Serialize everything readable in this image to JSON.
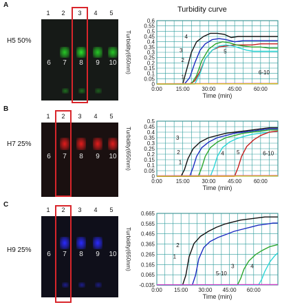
{
  "panels": [
    {
      "letter": "A",
      "label": "H5 50%",
      "lanes": [
        "1",
        "2",
        "3",
        "4",
        "5"
      ],
      "well_labels": [
        "6",
        "7",
        "8",
        "9",
        "10"
      ],
      "highlighted_lane": "3",
      "band_color": "#26c826",
      "positive_lanes": [
        "2",
        "3",
        "4",
        "5"
      ]
    },
    {
      "letter": "B",
      "label": "H7 25%",
      "lanes": [
        "1",
        "2",
        "3",
        "4",
        "5"
      ],
      "well_labels": [
        "6",
        "7",
        "8",
        "9",
        "10"
      ],
      "highlighted_lane": "2",
      "band_color": "#e21c1c",
      "positive_lanes": [
        "2",
        "3",
        "4",
        "5"
      ]
    },
    {
      "letter": "C",
      "label": "H9 25%",
      "lanes": [
        "1",
        "2",
        "3",
        "4",
        "5"
      ],
      "well_labels": [
        "6",
        "7",
        "8",
        "9",
        "10"
      ],
      "highlighted_lane": "2",
      "band_color": "#2a2aff",
      "positive_lanes": [
        "2",
        "3",
        "4"
      ]
    }
  ],
  "chart_title": "Turbidity curve",
  "chart_data": [
    {
      "type": "line",
      "title": "Turbidity curve",
      "xlabel": "Time (min)",
      "ylabel": "Turbidity(650nm)",
      "xlim": [
        0,
        70
      ],
      "ylim": [
        0,
        0.6
      ],
      "xticks": [
        "0:00",
        "15:00",
        "30:00",
        "45:00",
        "60:00"
      ],
      "yticks": [
        "0",
        "0.05",
        "0.1",
        "0.15",
        "0.2",
        "0.25",
        "0.3",
        "0.35",
        "0.4",
        "0.45",
        "0.5",
        "0.55",
        "0.6"
      ],
      "grid": true,
      "annotations": [
        {
          "text": "1",
          "x": 15.0,
          "y": 0.05
        },
        {
          "text": "2",
          "x": 15.0,
          "y": 0.21
        },
        {
          "text": "3",
          "x": 14.0,
          "y": 0.3
        },
        {
          "text": "4",
          "x": 17.0,
          "y": 0.43
        },
        {
          "text": "5",
          "x": 39.5,
          "y": 0.29
        },
        {
          "text": "6-10",
          "x": 62.0,
          "y": 0.09
        }
      ],
      "series": [
        {
          "name": "1",
          "color": "#c51b1b",
          "x": [
            0,
            19,
            22,
            25,
            28,
            32,
            36,
            40,
            45,
            50,
            55,
            60,
            65,
            70
          ],
          "y": [
            0,
            0,
            0.03,
            0.12,
            0.24,
            0.32,
            0.35,
            0.36,
            0.37,
            0.37,
            0.37,
            0.38,
            0.38,
            0.38
          ]
        },
        {
          "name": "2",
          "color": "#1b2bc0",
          "x": [
            0,
            16,
            19,
            22,
            25,
            28,
            32,
            36,
            40,
            45,
            50,
            55,
            60,
            65,
            70
          ],
          "y": [
            0,
            0,
            0.06,
            0.2,
            0.32,
            0.38,
            0.42,
            0.43,
            0.42,
            0.4,
            0.41,
            0.41,
            0.41,
            0.41,
            0.41
          ]
        },
        {
          "name": "3",
          "color": "#101010",
          "x": [
            0,
            15,
            17,
            20,
            23,
            27,
            31,
            35,
            39,
            43,
            47,
            52,
            57,
            62,
            67,
            70
          ],
          "y": [
            0,
            0,
            0.12,
            0.3,
            0.4,
            0.45,
            0.48,
            0.48,
            0.47,
            0.44,
            0.45,
            0.45,
            0.45,
            0.45,
            0.45,
            0.45
          ]
        },
        {
          "name": "4",
          "color": "#2ba52b",
          "x": [
            0,
            20,
            23,
            26,
            30,
            34,
            38,
            42,
            46,
            50,
            55,
            60,
            65,
            70
          ],
          "y": [
            0,
            0,
            0.08,
            0.22,
            0.33,
            0.38,
            0.4,
            0.39,
            0.37,
            0.36,
            0.35,
            0.35,
            0.34,
            0.34
          ]
        },
        {
          "name": "5",
          "color": "#2ad6d6",
          "x": [
            0,
            22,
            25,
            28,
            32,
            36,
            40,
            44,
            48,
            52,
            56,
            60,
            65,
            70
          ],
          "y": [
            0,
            0,
            0.1,
            0.24,
            0.32,
            0.36,
            0.37,
            0.36,
            0.34,
            0.32,
            0.31,
            0.31,
            0.31,
            0.31
          ]
        },
        {
          "name": "6-10",
          "color": "#d040c8",
          "x": [
            0,
            70
          ],
          "y": [
            0.002,
            0.005
          ]
        },
        {
          "name": "6-10b",
          "color": "#d8c21c",
          "x": [
            0,
            70
          ],
          "y": [
            0.0,
            0.003
          ]
        }
      ]
    },
    {
      "type": "line",
      "xlabel": "Time (min)",
      "ylabel": "Turbidity(650nm)",
      "xlim": [
        0,
        70
      ],
      "ylim": [
        0,
        0.5
      ],
      "xticks": [
        "0:00",
        "15:00",
        "30:00",
        "45:00",
        "60:00"
      ],
      "yticks": [
        "0",
        "0.05",
        "0.1",
        "0.15",
        "0.2",
        "0.25",
        "0.3",
        "0.35",
        "0.4",
        "0.45",
        "0.5"
      ],
      "grid": true,
      "annotations": [
        {
          "text": "1",
          "x": 13.5,
          "y": 0.11
        },
        {
          "text": "2",
          "x": 12.5,
          "y": 0.2
        },
        {
          "text": "3",
          "x": 12.0,
          "y": 0.33
        },
        {
          "text": "4",
          "x": 38.0,
          "y": 0.19
        },
        {
          "text": "5",
          "x": 47.0,
          "y": 0.2
        },
        {
          "text": "6-10",
          "x": 64.5,
          "y": 0.19
        }
      ],
      "series": [
        {
          "name": "1",
          "color": "#101010",
          "x": [
            0,
            14,
            16,
            18,
            21,
            25,
            30,
            35,
            40,
            45,
            50,
            55,
            60,
            65,
            70
          ],
          "y": [
            0,
            0,
            0.06,
            0.16,
            0.25,
            0.31,
            0.35,
            0.37,
            0.39,
            0.4,
            0.41,
            0.42,
            0.43,
            0.44,
            0.44
          ]
        },
        {
          "name": "2",
          "color": "#1b2bc0",
          "x": [
            0,
            19,
            21,
            23,
            26,
            30,
            35,
            40,
            45,
            50,
            55,
            60,
            65,
            70
          ],
          "y": [
            0,
            0,
            0.08,
            0.18,
            0.26,
            0.31,
            0.35,
            0.37,
            0.39,
            0.4,
            0.41,
            0.42,
            0.43,
            0.43
          ]
        },
        {
          "name": "3",
          "color": "#2ba52b",
          "x": [
            0,
            24,
            26,
            28,
            31,
            35,
            40,
            45,
            50,
            55,
            60,
            65,
            70
          ],
          "y": [
            0,
            0,
            0.08,
            0.18,
            0.26,
            0.31,
            0.35,
            0.37,
            0.39,
            0.4,
            0.41,
            0.42,
            0.42
          ]
        },
        {
          "name": "4",
          "color": "#2ad6d6",
          "x": [
            0,
            31,
            33,
            35,
            38,
            42,
            46,
            50,
            55,
            60,
            65,
            70
          ],
          "y": [
            0,
            0,
            0.08,
            0.18,
            0.26,
            0.31,
            0.34,
            0.36,
            0.38,
            0.39,
            0.4,
            0.41
          ]
        },
        {
          "name": "5",
          "color": "#c51b1b",
          "x": [
            0,
            45,
            47,
            49,
            52,
            56,
            60,
            65,
            70
          ],
          "y": [
            0,
            0,
            0.08,
            0.18,
            0.27,
            0.33,
            0.37,
            0.4,
            0.41
          ]
        },
        {
          "name": "6-10",
          "color": "#d040c8",
          "x": [
            0,
            70
          ],
          "y": [
            0.004,
            0.006
          ]
        },
        {
          "name": "6-10b",
          "color": "#d8c21c",
          "x": [
            0,
            70
          ],
          "y": [
            0.0,
            0.003
          ]
        }
      ]
    },
    {
      "type": "line",
      "xlabel": "Time (min)",
      "ylabel": "Turbidity(650nm)",
      "xlim": [
        0,
        75
      ],
      "ylim": [
        -0.035,
        0.665
      ],
      "xticks": [
        "0:00",
        "15:00",
        "30:00",
        "45:00",
        "60:00"
      ],
      "yticks": [
        "-0.035",
        "0.065",
        "0.165",
        "0.265",
        "0.365",
        "0.465",
        "0.565",
        "0.665"
      ],
      "grid": true,
      "annotations": [
        {
          "text": "2",
          "x": 13.0,
          "y": 0.335
        },
        {
          "text": "1",
          "x": 11.0,
          "y": 0.225
        },
        {
          "text": "3",
          "x": 47.0,
          "y": 0.13
        },
        {
          "text": "4",
          "x": 59.0,
          "y": 0.13
        },
        {
          "text": "5-10",
          "x": 40.0,
          "y": 0.06
        }
      ],
      "series": [
        {
          "name": "2",
          "color": "#101010",
          "x": [
            0,
            16,
            18,
            20,
            23,
            27,
            32,
            37,
            42,
            47,
            52,
            57,
            62,
            67,
            72,
            75
          ],
          "y": [
            -0.035,
            -0.035,
            0.06,
            0.24,
            0.37,
            0.44,
            0.49,
            0.53,
            0.56,
            0.58,
            0.6,
            0.61,
            0.62,
            0.63,
            0.63,
            0.63
          ]
        },
        {
          "name": "1",
          "color": "#1b2bc0",
          "x": [
            0,
            22,
            24,
            26,
            29,
            33,
            38,
            43,
            48,
            53,
            58,
            63,
            68,
            72,
            75
          ],
          "y": [
            -0.035,
            -0.035,
            0.06,
            0.22,
            0.33,
            0.39,
            0.43,
            0.46,
            0.49,
            0.51,
            0.53,
            0.55,
            0.56,
            0.57,
            0.57
          ]
        },
        {
          "name": "3",
          "color": "#2ba52b",
          "x": [
            0,
            50,
            52,
            54,
            57,
            61,
            65,
            70,
            75
          ],
          "y": [
            -0.035,
            -0.035,
            0.03,
            0.12,
            0.2,
            0.26,
            0.3,
            0.34,
            0.36
          ]
        },
        {
          "name": "4",
          "color": "#2ad6d6",
          "x": [
            0,
            63,
            65,
            67,
            70,
            73,
            75
          ],
          "y": [
            -0.035,
            -0.035,
            0.02,
            0.1,
            0.19,
            0.25,
            0.28
          ]
        },
        {
          "name": "5-10",
          "color": "#d040c8",
          "x": [
            0,
            75
          ],
          "y": [
            -0.033,
            -0.031
          ]
        }
      ]
    }
  ]
}
